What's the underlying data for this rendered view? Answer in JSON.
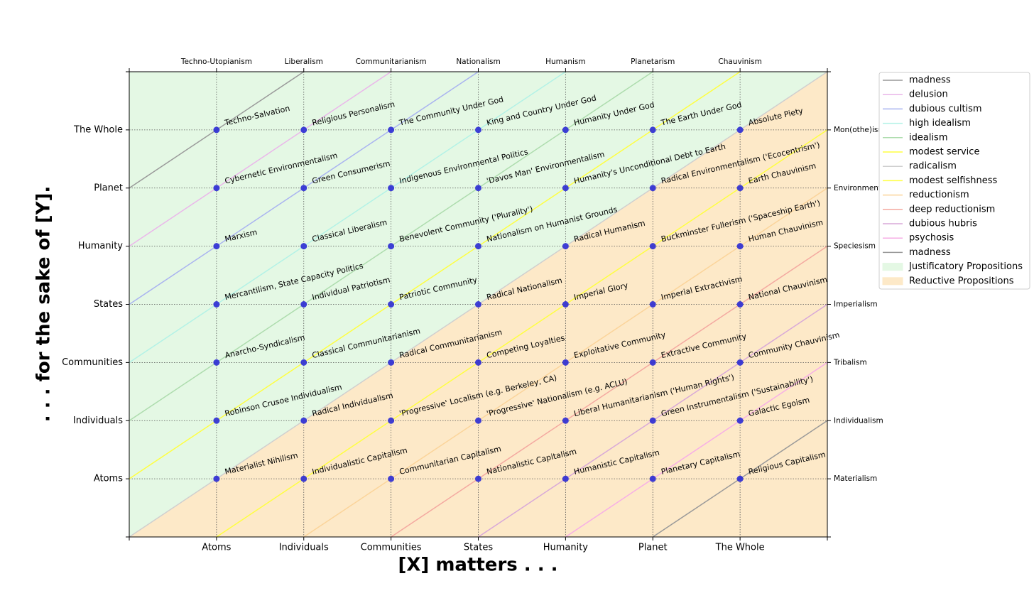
{
  "chart_data": {
    "type": "scatter",
    "x_label": "[X] matters . . .",
    "y_label": ". . . for the sake of [Y].",
    "xlim": [
      0,
      8
    ],
    "ylim": [
      0,
      8
    ],
    "xticks": [
      {
        "value": 1,
        "label": "Atoms"
      },
      {
        "value": 2,
        "label": "Individuals"
      },
      {
        "value": 3,
        "label": "Communities"
      },
      {
        "value": 4,
        "label": "States"
      },
      {
        "value": 5,
        "label": "Humanity"
      },
      {
        "value": 6,
        "label": "Planet"
      },
      {
        "value": 7,
        "label": "The Whole"
      }
    ],
    "yticks": [
      {
        "value": 1,
        "label": "Atoms"
      },
      {
        "value": 2,
        "label": "Individuals"
      },
      {
        "value": 3,
        "label": "Communities"
      },
      {
        "value": 4,
        "label": "States"
      },
      {
        "value": 5,
        "label": "Humanity"
      },
      {
        "value": 6,
        "label": "Planet"
      },
      {
        "value": 7,
        "label": "The Whole"
      }
    ],
    "x2ticks": [
      {
        "value": 1,
        "label": "Techno-Utopianism"
      },
      {
        "value": 2,
        "label": "Liberalism"
      },
      {
        "value": 3,
        "label": "Communitarianism"
      },
      {
        "value": 4,
        "label": "Nationalism"
      },
      {
        "value": 5,
        "label": "Humanism"
      },
      {
        "value": 6,
        "label": "Planetarism"
      },
      {
        "value": 7,
        "label": "Chauvinism"
      }
    ],
    "y2ticks": [
      {
        "value": 1,
        "label": "Materialism"
      },
      {
        "value": 2,
        "label": "Individualism"
      },
      {
        "value": 3,
        "label": "Tribalism"
      },
      {
        "value": 4,
        "label": "Imperialism"
      },
      {
        "value": 5,
        "label": "Speciesism"
      },
      {
        "value": 6,
        "label": "Environmentalism"
      },
      {
        "value": 7,
        "label": "Mon(othe)ism"
      }
    ],
    "grid": true,
    "legend": "upper right",
    "regions": [
      {
        "name": "Justificatory Propositions",
        "color": "#e4f8e4",
        "side": "upper"
      },
      {
        "name": "Reductive Propositions",
        "color": "#fde9c8",
        "side": "lower"
      }
    ],
    "series": [
      {
        "type": "scatter",
        "color": "#2b2bd4",
        "x": [
          1,
          2,
          3,
          4,
          5,
          6,
          7,
          1,
          2,
          3,
          4,
          5,
          6,
          7,
          1,
          2,
          3,
          4,
          5,
          6,
          7,
          1,
          2,
          3,
          4,
          5,
          6,
          7,
          1,
          2,
          3,
          4,
          5,
          6,
          7,
          1,
          2,
          3,
          4,
          5,
          6,
          7,
          1,
          2,
          3,
          4,
          5,
          6,
          7
        ],
        "values": [
          7,
          7,
          7,
          7,
          7,
          7,
          7,
          6,
          6,
          6,
          6,
          6,
          6,
          6,
          5,
          5,
          5,
          5,
          5,
          5,
          5,
          4,
          4,
          4,
          4,
          4,
          4,
          4,
          3,
          3,
          3,
          3,
          3,
          3,
          3,
          2,
          2,
          2,
          2,
          2,
          2,
          2,
          1,
          1,
          1,
          1,
          1,
          1,
          1
        ],
        "labels": [
          "Techno-Salvation",
          "Religious Personalism",
          "The Community Under God",
          "King and Country Under God",
          "Humanity Under God",
          "The Earth Under God",
          "Absolute Piety",
          "Cybernetic Environmentalism",
          "Green Consumerism",
          "Indigenous Environmental Politics",
          "'Davos Man' Environmentalism",
          "Humanity's Unconditional Debt to Earth",
          "Radical Environmentalism ('Ecocentrism')",
          "Earth Chauvinism",
          "Marxism",
          "Classical Liberalism",
          "Benevolent Community ('Plurality')",
          "Nationalism on Humanist Grounds",
          "Radical Humanism",
          "Buckminster Fullerism ('Spaceship Earth')",
          "Human Chauvinism",
          "Mercantilism, State Capacity Politics",
          "Individual Patriotism",
          "Patriotic Community",
          "Radical Nationalism",
          "Imperial Glory",
          "Imperial Extractivism",
          "National Chauvinism",
          "Anarcho-Syndicalism",
          "Classical Communitarianism",
          "Radical Communitarianism",
          "Competing Loyalties",
          "Exploitative Community",
          "Extractive Community",
          "Community Chauvinism",
          "Robinson Crusoe Individualism",
          "Radical Individualism",
          "'Progressive' Localism (e.g. Berkeley, CA)",
          "'Progressive' Nationalism (e.g. ACLU)",
          "Liberal Humanitarianism ('Human Rights')",
          "Green Instrumentalism ('Sustainability')",
          "Galactic Egoism",
          "Materialist Nihilism",
          "Individualistic Capitalism",
          "Communitarian Capitalism",
          "Nationalistic Capitalism",
          "Humanistic Capitalism",
          "Planetary Capitalism",
          "Religious Capitalism"
        ]
      },
      {
        "type": "line",
        "name": "madness",
        "color": "#999999",
        "x": [
          0,
          2
        ],
        "values": [
          6,
          8
        ]
      },
      {
        "type": "line",
        "name": "delusion",
        "color": "#eab6ea",
        "x": [
          0,
          3
        ],
        "values": [
          5,
          8
        ]
      },
      {
        "type": "line",
        "name": "dubious cultism",
        "color": "#a9b3f0",
        "x": [
          0,
          4
        ],
        "values": [
          4,
          8
        ]
      },
      {
        "type": "line",
        "name": "high idealism",
        "color": "#b2f2e6",
        "x": [
          0,
          5
        ],
        "values": [
          3,
          8
        ]
      },
      {
        "type": "line",
        "name": "idealism",
        "color": "#addcad",
        "x": [
          0,
          6
        ],
        "values": [
          2,
          8
        ]
      },
      {
        "type": "line",
        "name": "modest service",
        "color": "#ffff40",
        "x": [
          0,
          7
        ],
        "values": [
          1,
          8
        ]
      },
      {
        "type": "line",
        "name": "radicalism",
        "color": "#cfcfcf",
        "x": [
          0,
          8
        ],
        "values": [
          0,
          8
        ]
      },
      {
        "type": "line",
        "name": "modest selfishness",
        "color": "#ffff40",
        "x": [
          1,
          8
        ],
        "values": [
          0,
          7
        ]
      },
      {
        "type": "line",
        "name": "reductionism",
        "color": "#fbd49a",
        "x": [
          2,
          8
        ],
        "values": [
          0,
          6
        ]
      },
      {
        "type": "line",
        "name": "deep reductionism",
        "color": "#f4a8a0",
        "x": [
          3,
          8
        ],
        "values": [
          0,
          5
        ]
      },
      {
        "type": "line",
        "name": "dubious hubris",
        "color": "#d8a8d8",
        "x": [
          4,
          8
        ],
        "values": [
          0,
          4
        ]
      },
      {
        "type": "line",
        "name": "psychosis",
        "color": "#f7aee6",
        "x": [
          5,
          8
        ],
        "values": [
          0,
          3
        ]
      },
      {
        "type": "line",
        "name": "madness",
        "color": "#999999",
        "x": [
          6,
          8
        ],
        "values": [
          0,
          2
        ]
      }
    ]
  }
}
